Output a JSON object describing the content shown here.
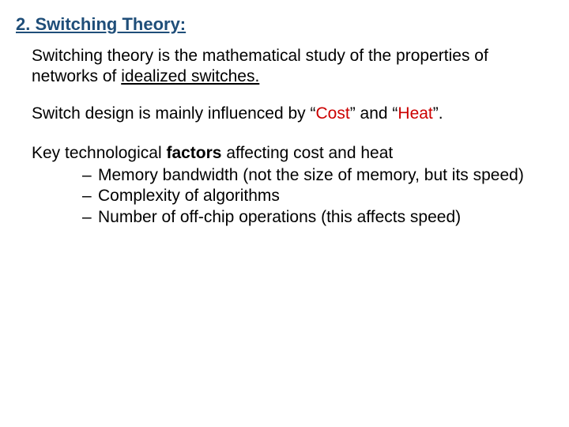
{
  "heading": "2. Switching Theory:",
  "para1_a": "Switching theory is the mathematical study of the properties of networks of ",
  "para1_b": "idealized switches.",
  "para2_a": "Switch design is mainly influenced by “",
  "para2_cost": "Cost",
  "para2_b": "” and “",
  "para2_heat": "Heat",
  "para2_c": "”.",
  "para3_a": "Key technological ",
  "para3_factors": "factors",
  "para3_b": " affecting cost and heat",
  "bullet1": "Memory bandwidth (not the size of memory, but its speed)",
  "bullet2": "Complexity of algorithms",
  "bullet3": "Number of off-chip operations (this affects speed)",
  "dash": "–"
}
